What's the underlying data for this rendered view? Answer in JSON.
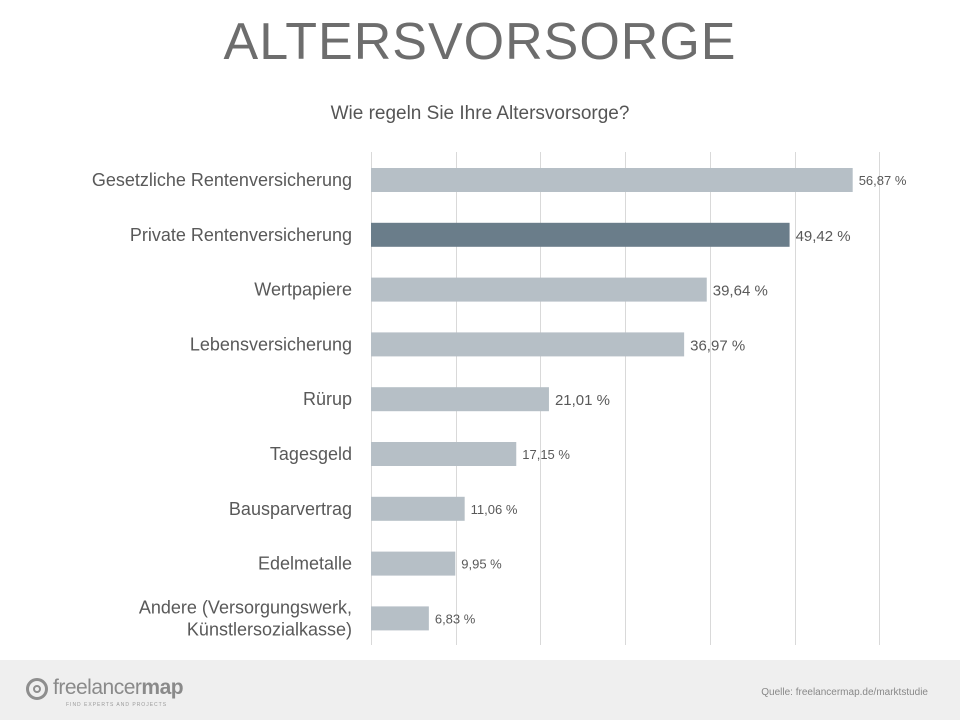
{
  "header": {
    "title": "ALTERSVORSORGE",
    "subtitle": "Wie regeln Sie Ihre Altersvorsorge?"
  },
  "chart_data": {
    "type": "bar",
    "orientation": "horizontal",
    "title": "ALTERSVORSORGE",
    "subtitle": "Wie regeln Sie Ihre Altersvorsorge?",
    "categories": [
      "Gesetzliche Rentenversicherung",
      "Private Rentenversicherung",
      "Wertpapiere",
      "Lebensversicherung",
      "Rürup",
      "Tagesgeld",
      "Bausparvertrag",
      "Edelmetalle",
      "Andere (Versorgungswerk, Künstlersozialkasse)"
    ],
    "category_lines": [
      [
        "Gesetzliche Rentenversicherung"
      ],
      [
        "Private Rentenversicherung"
      ],
      [
        "Wertpapiere"
      ],
      [
        "Lebensversicherung"
      ],
      [
        "Rürup"
      ],
      [
        "Tagesgeld"
      ],
      [
        "Bausparvertrag"
      ],
      [
        "Edelmetalle"
      ],
      [
        "Andere (Versorgungswerk,",
        "Künstlersozialkasse)"
      ]
    ],
    "values": [
      56.87,
      49.42,
      39.64,
      36.97,
      21.01,
      17.15,
      11.06,
      9.95,
      6.83
    ],
    "value_labels": [
      "56,87 %",
      "49,42 %",
      "39,64 %",
      "36,97 %",
      "21,01 %",
      "17,15 %",
      "11,06 %",
      "9,95 %",
      "6,83 %"
    ],
    "highlight_index": 1,
    "xlim": [
      0,
      60
    ],
    "grid": true,
    "xlabel": "",
    "ylabel": "",
    "colors": {
      "bar": "#b6bfc6",
      "highlight": "#6a7d8a",
      "grid": "#d9d9d9",
      "label": "#595959",
      "value_label": "#595959"
    }
  },
  "footer": {
    "logo_name": "freelancermap",
    "logo_light": "freelancer",
    "logo_bold": "map",
    "logo_tagline": "FIND EXPERTS AND PROJECTS",
    "source": "Quelle: freelancermap.de/marktstudie"
  }
}
